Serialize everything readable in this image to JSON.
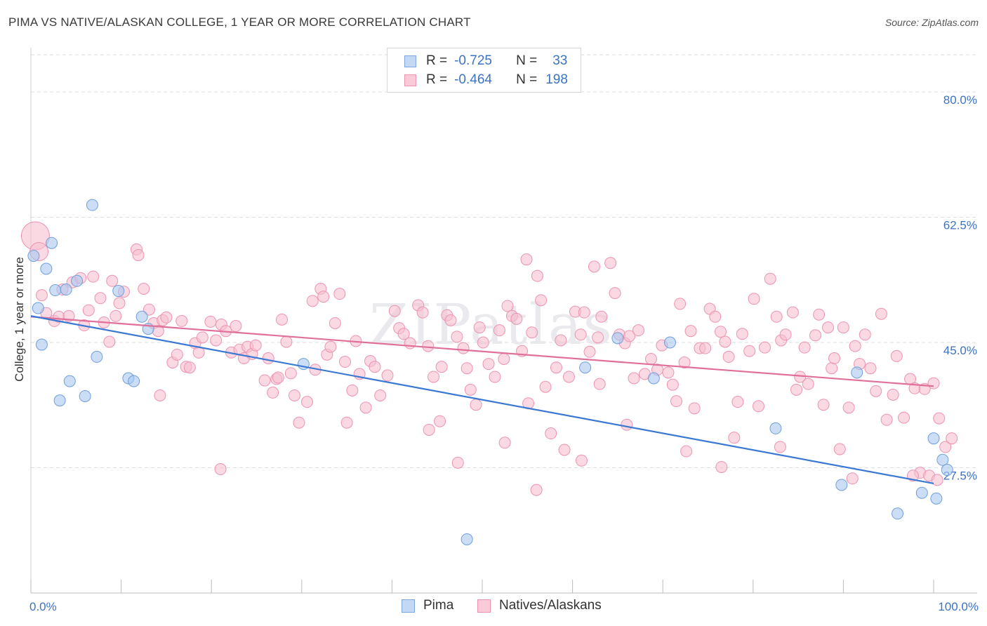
{
  "title": "PIMA VS NATIVE/ALASKAN COLLEGE, 1 YEAR OR MORE CORRELATION CHART",
  "source": "Source: ZipAtlas.com",
  "legend": {
    "pima": {
      "r_label": "R =",
      "r_value": "-0.725",
      "n_label": "N =",
      "n_value": "33"
    },
    "natives": {
      "r_label": "R =",
      "r_value": "-0.464",
      "n_label": "N =",
      "n_value": "198"
    }
  },
  "bottom_legend": {
    "pima": "Pima",
    "natives": "Natives/Alaskans"
  },
  "colors": {
    "pima_fill": "#a9c8f0",
    "pima_stroke": "#6f9fdc",
    "pima_line": "#3a78d4",
    "natives_fill": "#f7bfd0",
    "natives_stroke": "#ec93b1",
    "natives_line": "#e0709a",
    "axis_label": "#3b73c4",
    "grid": "#dcdcdc"
  },
  "chart_data": {
    "type": "scatter",
    "title": "PIMA VS NATIVE/ALASKAN COLLEGE, 1 YEAR OR MORE CORRELATION CHART",
    "xlabel": "",
    "ylabel": "College, 1 year or more",
    "xlim": [
      0,
      100
    ],
    "ylim": [
      10,
      85
    ],
    "x_tick_labels": [
      "0.0%",
      "100.0%"
    ],
    "y_ticks": [
      27.5,
      45.0,
      62.5,
      80.0
    ],
    "y_tick_labels": [
      "27.5%",
      "45.0%",
      "62.5%",
      "80.0%"
    ],
    "watermark": "ZIPatlas",
    "series": [
      {
        "name": "Pima",
        "trend": [
          [
            0,
            48.7
          ],
          [
            100,
            25.3
          ]
        ],
        "points": [
          [
            0.3,
            57.1
          ],
          [
            0.8,
            49.8
          ],
          [
            1.2,
            44.7
          ],
          [
            1.7,
            55.3
          ],
          [
            2.3,
            58.9
          ],
          [
            2.7,
            52.3
          ],
          [
            3.2,
            36.9
          ],
          [
            3.9,
            52.4
          ],
          [
            4.3,
            39.6
          ],
          [
            5.1,
            53.6
          ],
          [
            6.0,
            37.5
          ],
          [
            6.8,
            64.2
          ],
          [
            7.3,
            43.0
          ],
          [
            9.7,
            52.2
          ],
          [
            10.8,
            40.0
          ],
          [
            11.4,
            39.6
          ],
          [
            12.3,
            48.6
          ],
          [
            13.0,
            46.9
          ],
          [
            30.2,
            42.0
          ],
          [
            48.3,
            17.5
          ],
          [
            61.4,
            41.5
          ],
          [
            65.0,
            45.6
          ],
          [
            69.0,
            40.0
          ],
          [
            70.8,
            45.0
          ],
          [
            82.5,
            33.0
          ],
          [
            89.8,
            25.1
          ],
          [
            91.5,
            40.8
          ],
          [
            96.0,
            21.1
          ],
          [
            98.7,
            24.0
          ],
          [
            100.0,
            31.6
          ],
          [
            100.3,
            23.2
          ],
          [
            101.0,
            28.6
          ],
          [
            101.5,
            27.2
          ]
        ]
      },
      {
        "name": "Natives/Alaskans",
        "trend": [
          [
            0,
            48.6
          ],
          [
            100,
            38.9
          ]
        ],
        "points": [
          [
            0.5,
            59.9
          ],
          [
            0.9,
            57.7
          ],
          [
            1.2,
            51.6
          ],
          [
            1.7,
            49.1
          ],
          [
            2.6,
            48.0
          ],
          [
            3.1,
            48.6
          ],
          [
            3.5,
            52.4
          ],
          [
            4.2,
            48.7
          ],
          [
            4.6,
            53.4
          ],
          [
            5.5,
            54.0
          ],
          [
            5.9,
            47.4
          ],
          [
            6.4,
            49.5
          ],
          [
            6.9,
            54.2
          ],
          [
            7.7,
            51.2
          ],
          [
            8.1,
            47.8
          ],
          [
            8.7,
            45.1
          ],
          [
            9.0,
            53.6
          ],
          [
            9.4,
            48.7
          ],
          [
            9.8,
            50.5
          ],
          [
            10.3,
            52.1
          ],
          [
            11.7,
            58.0
          ],
          [
            11.9,
            57.2
          ],
          [
            12.5,
            52.5
          ],
          [
            13.1,
            49.6
          ],
          [
            13.6,
            47.7
          ],
          [
            14.1,
            46.6
          ],
          [
            14.6,
            48.1
          ],
          [
            15.0,
            48.5
          ],
          [
            15.7,
            42.2
          ],
          [
            16.2,
            43.3
          ],
          [
            16.7,
            48.0
          ],
          [
            17.2,
            41.6
          ],
          [
            17.6,
            41.5
          ],
          [
            18.2,
            44.9
          ],
          [
            18.6,
            43.6
          ],
          [
            19.0,
            45.7
          ],
          [
            19.9,
            47.9
          ],
          [
            20.5,
            45.3
          ],
          [
            21.1,
            47.5
          ],
          [
            21.6,
            46.6
          ],
          [
            22.2,
            43.6
          ],
          [
            22.7,
            47.3
          ],
          [
            23.1,
            44.0
          ],
          [
            23.6,
            42.8
          ],
          [
            24.0,
            44.4
          ],
          [
            24.5,
            43.4
          ],
          [
            24.9,
            44.6
          ],
          [
            25.9,
            39.7
          ],
          [
            26.3,
            42.8
          ],
          [
            26.8,
            38.0
          ],
          [
            27.2,
            39.9
          ],
          [
            27.8,
            48.2
          ],
          [
            28.3,
            45.1
          ],
          [
            28.8,
            40.7
          ],
          [
            29.2,
            37.6
          ],
          [
            29.7,
            33.8
          ],
          [
            30.6,
            36.7
          ],
          [
            31.2,
            50.8
          ],
          [
            32.1,
            52.5
          ],
          [
            32.4,
            51.4
          ],
          [
            32.8,
            43.3
          ],
          [
            33.2,
            44.4
          ],
          [
            33.7,
            47.7
          ],
          [
            34.2,
            51.8
          ],
          [
            34.8,
            42.3
          ],
          [
            35.6,
            38.3
          ],
          [
            36.0,
            45.2
          ],
          [
            36.4,
            40.6
          ],
          [
            37.1,
            35.9
          ],
          [
            37.6,
            42.4
          ],
          [
            38.1,
            41.6
          ],
          [
            38.7,
            37.6
          ],
          [
            39.5,
            40.4
          ],
          [
            40.3,
            49.4
          ],
          [
            40.8,
            47.0
          ],
          [
            41.3,
            46.2
          ],
          [
            42.0,
            44.9
          ],
          [
            42.9,
            50.2
          ],
          [
            43.4,
            49.2
          ],
          [
            44.0,
            44.5
          ],
          [
            44.6,
            40.2
          ],
          [
            45.5,
            41.6
          ],
          [
            46.1,
            48.8
          ],
          [
            46.5,
            48.1
          ],
          [
            47.2,
            45.8
          ],
          [
            47.9,
            44.2
          ],
          [
            48.3,
            41.4
          ],
          [
            48.7,
            38.4
          ],
          [
            49.3,
            36.3
          ],
          [
            49.7,
            47.1
          ],
          [
            50.1,
            45.0
          ],
          [
            50.7,
            42.0
          ],
          [
            51.4,
            40.2
          ],
          [
            51.9,
            46.7
          ],
          [
            52.4,
            42.7
          ],
          [
            52.8,
            50.1
          ],
          [
            53.3,
            48.7
          ],
          [
            53.8,
            48.3
          ],
          [
            54.4,
            43.8
          ],
          [
            54.9,
            56.6
          ],
          [
            55.5,
            46.4
          ],
          [
            56.1,
            54.3
          ],
          [
            56.5,
            50.9
          ],
          [
            57.0,
            38.8
          ],
          [
            57.6,
            32.3
          ],
          [
            58.2,
            41.5
          ],
          [
            58.7,
            45.3
          ],
          [
            59.1,
            30.0
          ],
          [
            59.6,
            40.2
          ],
          [
            60.3,
            49.3
          ],
          [
            60.9,
            46.1
          ],
          [
            61.3,
            49.2
          ],
          [
            61.9,
            43.7
          ],
          [
            62.4,
            55.6
          ],
          [
            62.8,
            45.7
          ],
          [
            63.2,
            48.6
          ],
          [
            64.2,
            56.1
          ],
          [
            64.7,
            51.9
          ],
          [
            65.2,
            46.1
          ],
          [
            65.8,
            44.9
          ],
          [
            66.3,
            45.9
          ],
          [
            66.8,
            40.0
          ],
          [
            67.3,
            46.7
          ],
          [
            68.0,
            40.6
          ],
          [
            68.7,
            42.7
          ],
          [
            69.4,
            41.2
          ],
          [
            69.9,
            44.6
          ],
          [
            70.6,
            40.8
          ],
          [
            71.1,
            39.1
          ],
          [
            71.5,
            36.8
          ],
          [
            71.9,
            50.4
          ],
          [
            72.4,
            42.2
          ],
          [
            73.1,
            46.6
          ],
          [
            73.5,
            35.8
          ],
          [
            74.1,
            44.2
          ],
          [
            74.7,
            44.2
          ],
          [
            75.2,
            49.7
          ],
          [
            75.8,
            48.6
          ],
          [
            76.4,
            46.5
          ],
          [
            76.9,
            45.1
          ],
          [
            77.3,
            43.0
          ],
          [
            77.9,
            31.7
          ],
          [
            78.3,
            36.7
          ],
          [
            78.8,
            46.2
          ],
          [
            79.6,
            43.8
          ],
          [
            80.1,
            51.1
          ],
          [
            80.6,
            36.1
          ],
          [
            81.3,
            44.3
          ],
          [
            81.9,
            53.9
          ],
          [
            82.6,
            48.6
          ],
          [
            83.1,
            45.3
          ],
          [
            83.6,
            46.1
          ],
          [
            84.4,
            49.2
          ],
          [
            84.8,
            38.4
          ],
          [
            85.2,
            40.2
          ],
          [
            85.7,
            44.3
          ],
          [
            86.1,
            39.2
          ],
          [
            86.9,
            46.0
          ],
          [
            87.3,
            48.9
          ],
          [
            87.8,
            36.3
          ],
          [
            88.3,
            47.1
          ],
          [
            88.7,
            41.4
          ],
          [
            89.0,
            42.8
          ],
          [
            89.6,
            30.1
          ],
          [
            90.0,
            47.1
          ],
          [
            90.6,
            35.9
          ],
          [
            91.3,
            44.5
          ],
          [
            91.8,
            42.0
          ],
          [
            92.4,
            46.1
          ],
          [
            93.0,
            41.4
          ],
          [
            93.6,
            38.2
          ],
          [
            94.2,
            49.0
          ],
          [
            94.8,
            34.2
          ],
          [
            95.5,
            37.7
          ],
          [
            95.9,
            43.1
          ],
          [
            96.7,
            34.5
          ],
          [
            97.4,
            39.9
          ],
          [
            97.9,
            38.6
          ],
          [
            98.5,
            26.8
          ],
          [
            99.0,
            38.5
          ],
          [
            99.5,
            26.4
          ],
          [
            100.0,
            39.3
          ],
          [
            100.6,
            34.4
          ],
          [
            101.3,
            30.4
          ],
          [
            102.0,
            31.6
          ],
          [
            14.3,
            37.6
          ],
          [
            21.0,
            27.3
          ],
          [
            35.0,
            33.8
          ],
          [
            44.1,
            32.8
          ],
          [
            47.3,
            28.2
          ],
          [
            52.5,
            31.0
          ],
          [
            56.0,
            24.4
          ],
          [
            61.0,
            28.5
          ],
          [
            66.0,
            33.5
          ],
          [
            72.6,
            29.8
          ],
          [
            76.5,
            27.6
          ],
          [
            83.0,
            30.4
          ],
          [
            91.0,
            26.0
          ],
          [
            97.7,
            26.4
          ],
          [
            100.4,
            25.8
          ],
          [
            27.4,
            40.1
          ],
          [
            31.5,
            41.2
          ],
          [
            45.3,
            34.0
          ],
          [
            55.1,
            36.5
          ],
          [
            63.0,
            39.2
          ]
        ]
      }
    ]
  }
}
